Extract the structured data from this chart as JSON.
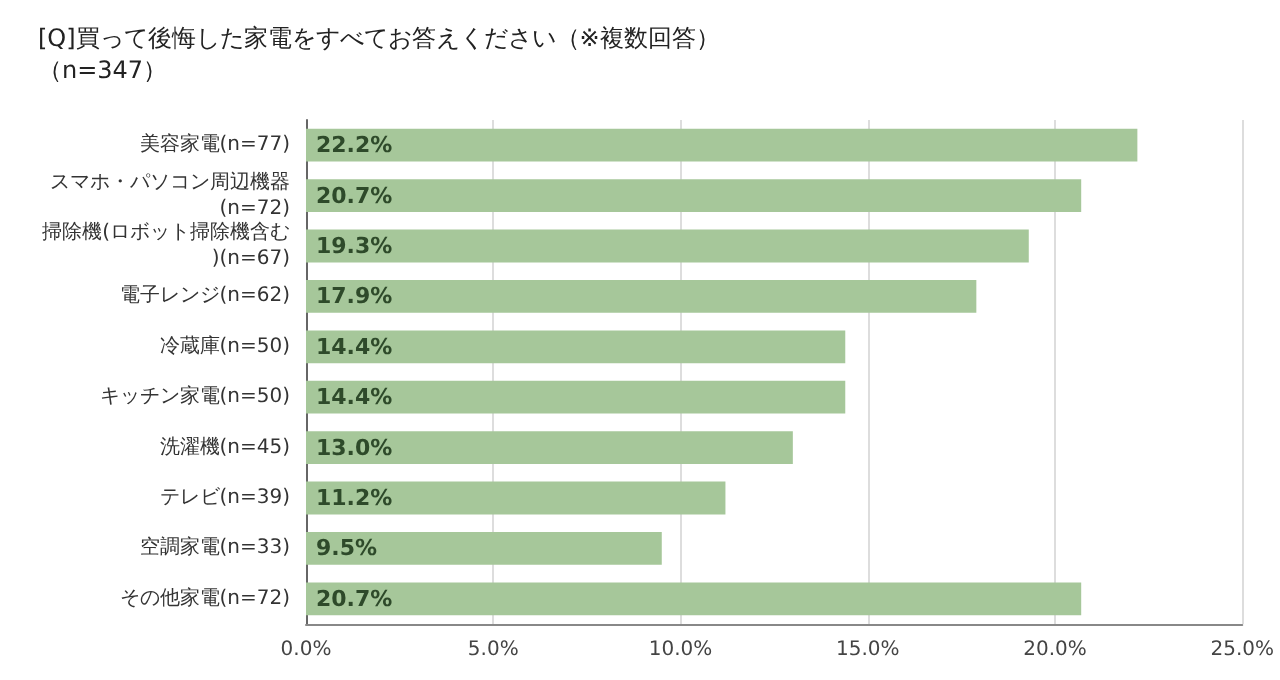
{
  "chart_data": {
    "type": "bar",
    "orientation": "horizontal",
    "title": "[Q]買って後悔した家電をすべてお答えください（※複数回答）",
    "subtitle": "（n=347）",
    "categories": [
      "美容家電(n=77)",
      "スマホ・パソコン周辺機器(n=72)",
      "掃除機(ロボット掃除機含む)(n=67)",
      "電子レンジ(n=62)",
      "冷蔵庫(n=50)",
      "キッチン家電(n=50)",
      "洗濯機(n=45)",
      "テレビ(n=39)",
      "空調家電(n=33)",
      "その他家電(n=72)"
    ],
    "values": [
      22.2,
      20.7,
      19.3,
      17.9,
      14.4,
      14.4,
      13.0,
      11.2,
      9.5,
      20.7
    ],
    "value_labels": [
      "22.2%",
      "20.7%",
      "19.3%",
      "17.9%",
      "14.4%",
      "14.4%",
      "13.0%",
      "11.2%",
      "9.5%",
      "20.7%"
    ],
    "color": "#a6c79a",
    "xlim": [
      0,
      25
    ],
    "xticks": [
      {
        "value": 0,
        "label": "0.0%"
      },
      {
        "value": 5,
        "label": "5.0%"
      },
      {
        "value": 10,
        "label": "10.0%"
      },
      {
        "value": 15,
        "label": "15.0%"
      },
      {
        "value": 20,
        "label": "20.0%"
      },
      {
        "value": 25,
        "label": "25.0%"
      }
    ],
    "grid": "x"
  }
}
